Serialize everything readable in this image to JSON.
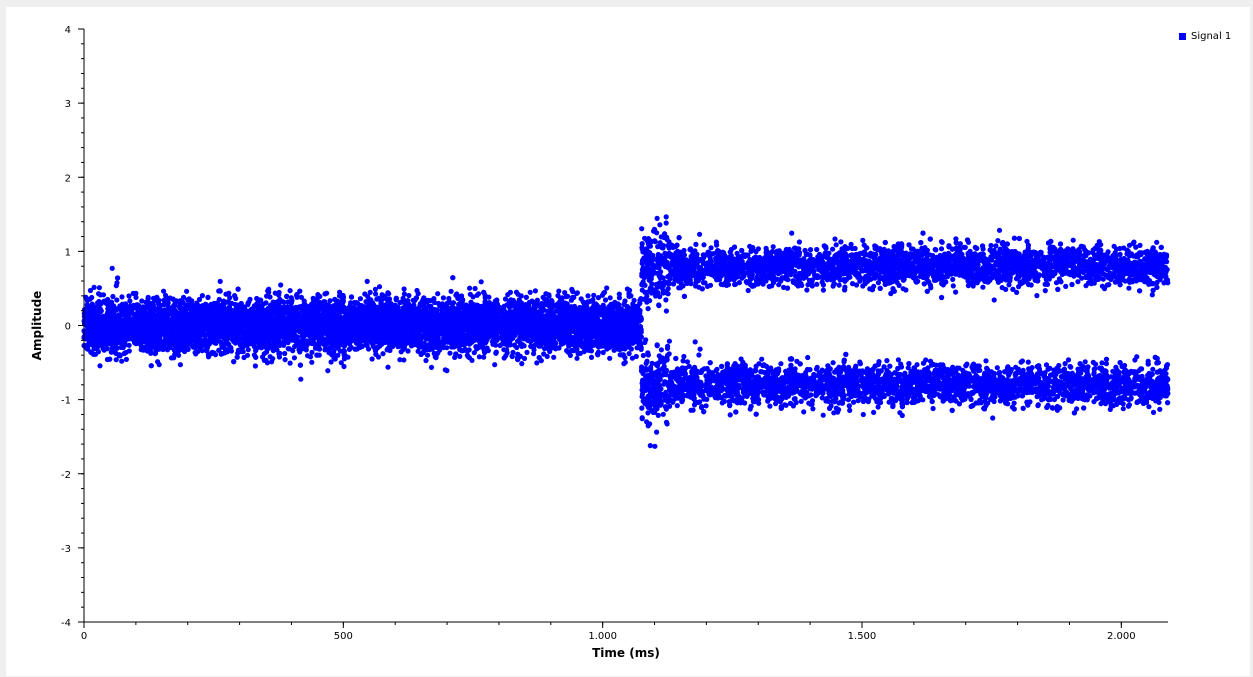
{
  "chart_data": {
    "type": "scatter",
    "xlabel": "Time (ms)",
    "ylabel": "Amplitude",
    "xlim": [
      0,
      2090
    ],
    "ylim": [
      -4,
      4
    ],
    "x_ticks": [
      0,
      500,
      1000,
      1500,
      2000
    ],
    "x_tick_labels": [
      "0",
      "500",
      "1.000",
      "1.500",
      "2.000"
    ],
    "y_ticks": [
      -4,
      -3,
      -2,
      -1,
      0,
      1,
      2,
      3,
      4
    ],
    "y_tick_labels": [
      "-4",
      "-3",
      "-2",
      "-1",
      "0",
      "1",
      "2",
      "3",
      "4"
    ],
    "grid": false,
    "legend": {
      "position": "right",
      "entries": [
        "Signal 1"
      ]
    },
    "series": [
      {
        "name": "Signal 1",
        "color": "#0000ff",
        "segments": [
          {
            "x_range": [
              0,
              1075
            ],
            "centers": [
              0
            ],
            "spread": 0.4,
            "description": "single noisy cluster around 0"
          },
          {
            "x_range": [
              1075,
              1130
            ],
            "centers": [
              0.8,
              -0.8
            ],
            "spread": 0.6,
            "description": "transition, samples spread between -1.9 and 1.6"
          },
          {
            "x_range": [
              1130,
              2090
            ],
            "centers": [
              0.8,
              -0.8
            ],
            "spread": 0.3,
            "description": "two noisy clusters around +0.8 and -0.8"
          }
        ],
        "y_extremes": {
          "max": 1.57,
          "min": -1.9
        }
      }
    ]
  }
}
